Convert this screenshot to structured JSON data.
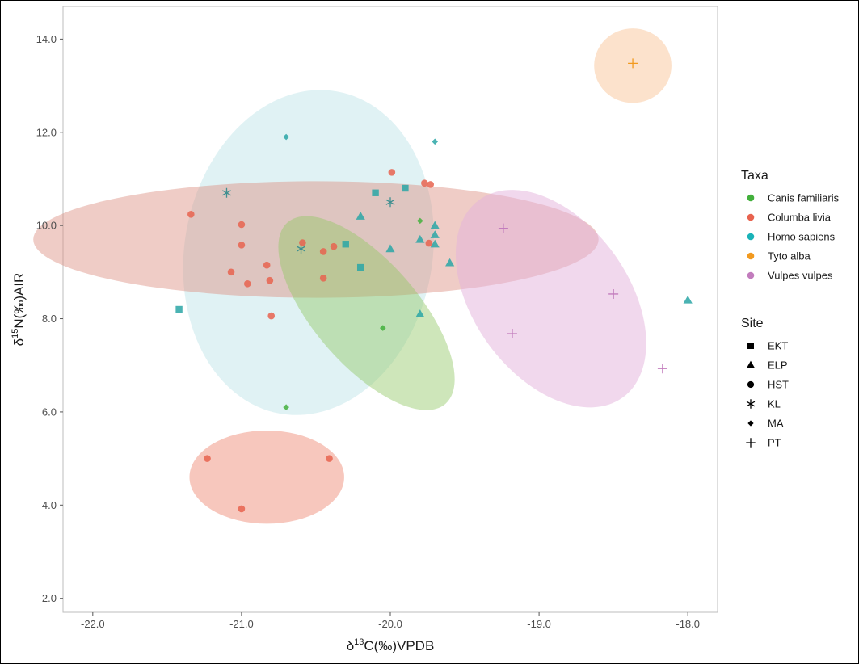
{
  "chart_data": {
    "type": "scatter",
    "xlabel": {
      "prefix": "δ",
      "sup": "13",
      "suffix": "C(‰)VPDB"
    },
    "ylabel": {
      "prefix": "δ",
      "sup": "15",
      "suffix": "N(‰)AIR"
    },
    "xlim": [
      -22.2,
      -17.8
    ],
    "ylim": [
      1.7,
      14.7
    ],
    "x_ticks": [
      -22.0,
      -21.0,
      -20.0,
      -19.0,
      -18.0
    ],
    "x_tick_labels": [
      "-22.0",
      "-21.0",
      "-20.0",
      "-19.0",
      "-18.0"
    ],
    "y_ticks": [
      2.0,
      4.0,
      6.0,
      8.0,
      10.0,
      12.0,
      14.0
    ],
    "y_tick_labels": [
      "2.0",
      "4.0",
      "6.0",
      "8.0",
      "10.0",
      "12.0",
      "14.0"
    ],
    "grid": false,
    "legend_position": "right",
    "taxa_legend": {
      "title": "Taxa",
      "items": [
        {
          "label": "Canis familiaris",
          "color": "#43b03c"
        },
        {
          "label": "Columba livia",
          "color": "#e8634f"
        },
        {
          "label": "Homo sapiens",
          "color": "#1ab3b8"
        },
        {
          "label": "Tyto alba",
          "color": "#f29a1f"
        },
        {
          "label": "Vulpes vulpes",
          "color": "#c27cbd"
        }
      ]
    },
    "site_legend": {
      "title": "Site",
      "items": [
        {
          "label": "EKT",
          "shape": "square"
        },
        {
          "label": "ELP",
          "shape": "triangle"
        },
        {
          "label": "HST",
          "shape": "circle"
        },
        {
          "label": "KL",
          "shape": "asterisk"
        },
        {
          "label": "MA",
          "shape": "diamond"
        },
        {
          "label": "PT",
          "shape": "plus"
        }
      ]
    },
    "ellipses": [
      {
        "taxon": "Homo sapiens",
        "cx": -20.55,
        "cy": 9.42,
        "rx": 1.1,
        "ry": 2.66,
        "angle": -80,
        "color": "#8fd1d8",
        "opacity": 0.28
      },
      {
        "taxon": "Columba livia",
        "cx": -20.5,
        "cy": 9.7,
        "rx": 1.9,
        "ry": 1.25,
        "angle": 0,
        "color": "#dc8f80",
        "opacity": 0.45
      },
      {
        "taxon": "Canis familiaris",
        "cx": -20.16,
        "cy": 8.12,
        "rx": 0.35,
        "ry": 2.58,
        "angle": -41,
        "color": "#93c767",
        "opacity": 0.45
      },
      {
        "taxon": "Columba livia",
        "cx": -20.83,
        "cy": 4.6,
        "rx": 0.52,
        "ry": 1.0,
        "angle": 0,
        "color": "#ef8f7c",
        "opacity": 0.5
      },
      {
        "taxon": "Tyto alba",
        "cx": -18.37,
        "cy": 13.43,
        "rx": 0.26,
        "ry": 0.8,
        "angle": 0,
        "color": "#fbd3b0",
        "opacity": 0.65
      },
      {
        "taxon": "Vulpes vulpes",
        "cx": -18.92,
        "cy": 8.43,
        "rx": 0.52,
        "ry": 2.62,
        "angle": -36,
        "color": "#e4b2dc",
        "opacity": 0.5
      }
    ],
    "points": [
      {
        "x": -21.42,
        "y": 8.2,
        "taxon": "Homo sapiens",
        "site": "EKT"
      },
      {
        "x": -20.3,
        "y": 9.6,
        "taxon": "Homo sapiens",
        "site": "EKT"
      },
      {
        "x": -20.2,
        "y": 9.1,
        "taxon": "Homo sapiens",
        "site": "EKT"
      },
      {
        "x": -20.1,
        "y": 10.7,
        "taxon": "Homo sapiens",
        "site": "EKT"
      },
      {
        "x": -19.9,
        "y": 10.8,
        "taxon": "Homo sapiens",
        "site": "EKT"
      },
      {
        "x": -20.2,
        "y": 10.2,
        "taxon": "Homo sapiens",
        "site": "ELP"
      },
      {
        "x": -20.0,
        "y": 9.5,
        "taxon": "Homo sapiens",
        "site": "ELP"
      },
      {
        "x": -19.8,
        "y": 9.7,
        "taxon": "Homo sapiens",
        "site": "ELP"
      },
      {
        "x": -19.7,
        "y": 10.0,
        "taxon": "Homo sapiens",
        "site": "ELP"
      },
      {
        "x": -19.7,
        "y": 9.8,
        "taxon": "Homo sapiens",
        "site": "ELP"
      },
      {
        "x": -19.7,
        "y": 9.6,
        "taxon": "Homo sapiens",
        "site": "ELP"
      },
      {
        "x": -19.6,
        "y": 9.2,
        "taxon": "Homo sapiens",
        "site": "ELP"
      },
      {
        "x": -19.8,
        "y": 8.1,
        "taxon": "Homo sapiens",
        "site": "ELP"
      },
      {
        "x": -18.0,
        "y": 8.4,
        "taxon": "Homo sapiens",
        "site": "ELP"
      },
      {
        "x": -21.1,
        "y": 10.7,
        "taxon": "Homo sapiens",
        "site": "KL"
      },
      {
        "x": -20.6,
        "y": 9.5,
        "taxon": "Homo sapiens",
        "site": "KL"
      },
      {
        "x": -20.0,
        "y": 10.5,
        "taxon": "Homo sapiens",
        "site": "KL"
      },
      {
        "x": -20.7,
        "y": 11.9,
        "taxon": "Homo sapiens",
        "site": "MA"
      },
      {
        "x": -19.7,
        "y": 11.8,
        "taxon": "Homo sapiens",
        "site": "MA"
      },
      {
        "x": -21.34,
        "y": 10.24,
        "taxon": "Columba livia",
        "site": "HST"
      },
      {
        "x": -21.0,
        "y": 10.02,
        "taxon": "Columba livia",
        "site": "HST"
      },
      {
        "x": -21.0,
        "y": 9.58,
        "taxon": "Columba livia",
        "site": "HST"
      },
      {
        "x": -21.07,
        "y": 9.0,
        "taxon": "Columba livia",
        "site": "HST"
      },
      {
        "x": -20.96,
        "y": 8.75,
        "taxon": "Columba livia",
        "site": "HST"
      },
      {
        "x": -20.83,
        "y": 9.15,
        "taxon": "Columba livia",
        "site": "HST"
      },
      {
        "x": -20.81,
        "y": 8.82,
        "taxon": "Columba livia",
        "site": "HST"
      },
      {
        "x": -20.8,
        "y": 8.06,
        "taxon": "Columba livia",
        "site": "HST"
      },
      {
        "x": -20.59,
        "y": 9.63,
        "taxon": "Columba livia",
        "site": "HST"
      },
      {
        "x": -20.45,
        "y": 9.44,
        "taxon": "Columba livia",
        "site": "HST"
      },
      {
        "x": -20.38,
        "y": 9.55,
        "taxon": "Columba livia",
        "site": "HST"
      },
      {
        "x": -20.45,
        "y": 8.87,
        "taxon": "Columba livia",
        "site": "HST"
      },
      {
        "x": -19.99,
        "y": 11.14,
        "taxon": "Columba livia",
        "site": "HST"
      },
      {
        "x": -19.77,
        "y": 10.91,
        "taxon": "Columba livia",
        "site": "HST"
      },
      {
        "x": -19.73,
        "y": 10.88,
        "taxon": "Columba livia",
        "site": "HST"
      },
      {
        "x": -19.74,
        "y": 9.62,
        "taxon": "Columba livia",
        "site": "HST"
      },
      {
        "x": -21.23,
        "y": 5.0,
        "taxon": "Columba livia",
        "site": "HST"
      },
      {
        "x": -20.41,
        "y": 5.0,
        "taxon": "Columba livia",
        "site": "HST"
      },
      {
        "x": -21.0,
        "y": 3.92,
        "taxon": "Columba livia",
        "site": "HST"
      },
      {
        "x": -19.8,
        "y": 10.1,
        "taxon": "Canis familiaris",
        "site": "MA"
      },
      {
        "x": -20.05,
        "y": 7.8,
        "taxon": "Canis familiaris",
        "site": "MA"
      },
      {
        "x": -20.7,
        "y": 6.1,
        "taxon": "Canis familiaris",
        "site": "MA"
      },
      {
        "x": -18.37,
        "y": 13.48,
        "taxon": "Tyto alba",
        "site": "PT"
      },
      {
        "x": -19.24,
        "y": 9.94,
        "taxon": "Vulpes vulpes",
        "site": "PT"
      },
      {
        "x": -19.18,
        "y": 7.68,
        "taxon": "Vulpes vulpes",
        "site": "PT"
      },
      {
        "x": -18.5,
        "y": 8.53,
        "taxon": "Vulpes vulpes",
        "site": "PT"
      },
      {
        "x": -18.17,
        "y": 6.93,
        "taxon": "Vulpes vulpes",
        "site": "PT"
      }
    ]
  }
}
